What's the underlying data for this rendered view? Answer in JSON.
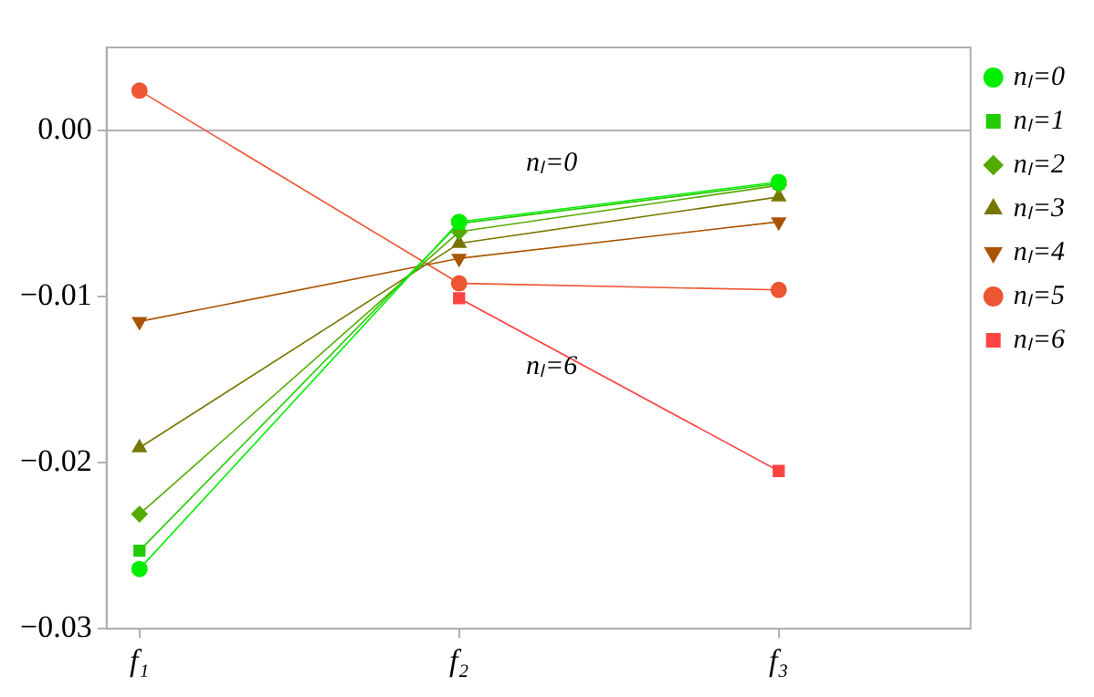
{
  "chart_data": {
    "type": "line",
    "categories": [
      "f₁",
      "f₂",
      "f₃"
    ],
    "ylim": [
      -0.03,
      0.005
    ],
    "yticks": [
      {
        "value": -0.03,
        "label": "−0.03"
      },
      {
        "value": -0.02,
        "label": "−0.02"
      },
      {
        "value": -0.01,
        "label": "−0.01"
      },
      {
        "value": 0,
        "label": "0.00"
      }
    ],
    "grid": false,
    "legend": "right",
    "line_style": "solid",
    "ref_lines": [
      {
        "axis": "y",
        "value": 0,
        "color": "#b0b0b0"
      }
    ],
    "annotations": [
      "nₗ=0",
      "nₗ=6"
    ],
    "series": [
      {
        "name": "nₗ=0",
        "color": "#00ee00",
        "marker": "circle",
        "values": [
          -0.0264,
          -0.0055,
          -0.0031
        ]
      },
      {
        "name": "nₗ=1",
        "color": "#22cc00",
        "marker": "square",
        "values": [
          -0.0253,
          -0.0056,
          -0.0032
        ]
      },
      {
        "name": "nₗ=2",
        "color": "#55aa00",
        "marker": "diamond",
        "values": [
          -0.0231,
          -0.0061,
          -0.0033
        ]
      },
      {
        "name": "nₗ=3",
        "color": "#777700",
        "marker": "triangle",
        "values": [
          -0.0191,
          -0.0068,
          -0.004
        ]
      },
      {
        "name": "nₗ=4",
        "color": "#aa5500",
        "marker": "triangle-down",
        "values": [
          -0.0115,
          -0.0077,
          -0.0055
        ]
      },
      {
        "name": "nₗ=5",
        "color": "#ee5533",
        "marker": "circle",
        "values": [
          0.0024,
          -0.0092,
          -0.0096
        ]
      },
      {
        "name": "nₗ=6",
        "color": "#ff4444",
        "marker": "square",
        "values": [
          null,
          -0.0101,
          -0.0205
        ]
      }
    ]
  }
}
